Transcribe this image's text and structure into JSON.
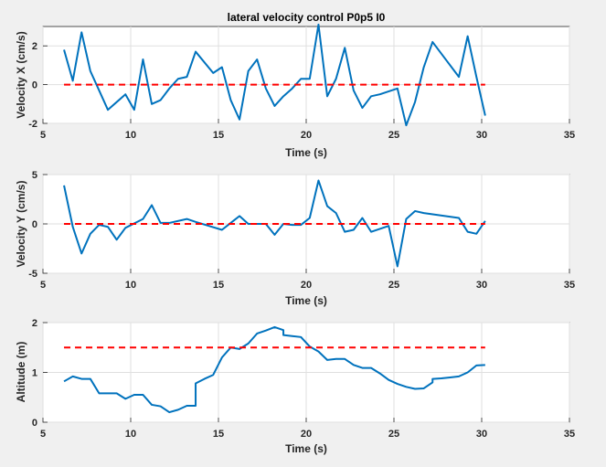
{
  "chart_data": [
    {
      "type": "line",
      "title": "lateral velocity control P0p5 I0",
      "xlabel": "Time (s)",
      "ylabel": "Velocity X (cm/s)",
      "xlim": [
        5,
        35
      ],
      "ylim": [
        -2,
        3
      ],
      "xticks": [
        "5",
        "10",
        "15",
        "20",
        "25",
        "30",
        "35"
      ],
      "yticks": [
        "-2",
        "0",
        "2"
      ],
      "ytick_values": [
        -2,
        0,
        2
      ],
      "grid": true,
      "series": [
        {
          "color": "#0072BD",
          "style": "solid",
          "x": [
            6.2,
            6.7,
            7.2,
            7.7,
            8.2,
            8.7,
            9.7,
            10.2,
            10.7,
            11.2,
            11.7,
            12.2,
            12.7,
            13.2,
            13.7,
            14.7,
            15.2,
            15.7,
            16.2,
            16.7,
            17.2,
            17.7,
            18.2,
            18.7,
            19.2,
            19.7,
            20.2,
            20.7,
            21.2,
            21.7,
            22.2,
            22.7,
            23.2,
            23.7,
            24.2,
            25.2,
            25.7,
            26.2,
            26.7,
            27.2,
            27.7,
            28.7,
            29.2,
            29.7,
            30.2
          ],
          "y": [
            1.8,
            0.2,
            2.7,
            0.7,
            -0.3,
            -1.3,
            -0.5,
            -1.3,
            1.3,
            -1.0,
            -0.8,
            -0.2,
            0.3,
            0.4,
            1.7,
            0.6,
            0.9,
            -0.8,
            -1.8,
            0.7,
            1.3,
            -0.2,
            -1.1,
            -0.6,
            -0.2,
            0.3,
            0.3,
            3.1,
            -0.6,
            0.3,
            1.9,
            -0.3,
            -1.2,
            -0.6,
            -0.5,
            -0.2,
            -2.1,
            -0.9,
            0.9,
            2.2,
            1.6,
            0.4,
            2.5,
            0.4,
            -1.6
          ]
        },
        {
          "color": "#FF0000",
          "style": "dashed",
          "x": [
            6.2,
            30.2
          ],
          "y": [
            0,
            0
          ]
        }
      ]
    },
    {
      "type": "line",
      "title": "",
      "xlabel": "Time (s)",
      "ylabel": "Velocity Y (cm/s)",
      "xlim": [
        5,
        35
      ],
      "ylim": [
        -5,
        5
      ],
      "xticks": [
        "5",
        "10",
        "15",
        "20",
        "25",
        "30",
        "35"
      ],
      "yticks": [
        "-5",
        "0",
        "5"
      ],
      "ytick_values": [
        -5,
        0,
        5
      ],
      "grid": true,
      "series": [
        {
          "color": "#0072BD",
          "style": "solid",
          "x": [
            6.2,
            6.7,
            7.2,
            7.7,
            8.2,
            8.7,
            9.2,
            9.7,
            10.7,
            11.2,
            11.7,
            12.2,
            13.2,
            13.7,
            15.2,
            15.7,
            16.2,
            16.7,
            17.2,
            17.7,
            18.2,
            18.7,
            19.2,
            19.7,
            20.2,
            20.7,
            21.2,
            21.7,
            22.2,
            22.7,
            23.2,
            23.7,
            24.2,
            24.7,
            25.2,
            25.7,
            26.2,
            26.7,
            28.7,
            29.2,
            29.7,
            30.2
          ],
          "y": [
            3.9,
            -0.3,
            -3.0,
            -1.0,
            -0.1,
            -0.3,
            -1.6,
            -0.4,
            0.5,
            1.9,
            0.1,
            0.1,
            0.5,
            0.2,
            -0.6,
            0.1,
            0.8,
            0.0,
            0.0,
            0.0,
            -1.1,
            0.0,
            -0.1,
            -0.1,
            0.6,
            4.4,
            1.8,
            1.1,
            -0.8,
            -0.6,
            0.6,
            -0.8,
            -0.5,
            -0.2,
            -4.3,
            0.5,
            1.3,
            1.1,
            0.6,
            -0.8,
            -1.0,
            0.3
          ]
        },
        {
          "color": "#FF0000",
          "style": "dashed",
          "x": [
            6.2,
            30.2
          ],
          "y": [
            0,
            0
          ]
        }
      ]
    },
    {
      "type": "line",
      "title": "",
      "xlabel": "Time (s)",
      "ylabel": "Altitude (m)",
      "xlim": [
        5,
        35
      ],
      "ylim": [
        0,
        2
      ],
      "xticks": [
        "5",
        "10",
        "15",
        "20",
        "25",
        "30",
        "35"
      ],
      "yticks": [
        "0",
        "1",
        "2"
      ],
      "ytick_values": [
        0,
        1,
        2
      ],
      "grid": true,
      "series": [
        {
          "color": "#0072BD",
          "style": "solid",
          "x": [
            6.2,
            6.7,
            7.2,
            7.7,
            8.2,
            8.7,
            9.2,
            9.7,
            10.2,
            10.7,
            11.2,
            11.7,
            12.2,
            12.7,
            13.2,
            13.7,
            13.7,
            14.2,
            14.7,
            15.2,
            15.7,
            16.2,
            16.7,
            17.2,
            17.7,
            18.2,
            18.7,
            18.7,
            19.2,
            19.7,
            20.2,
            20.7,
            21.2,
            21.7,
            22.2,
            22.7,
            23.2,
            23.7,
            24.2,
            24.7,
            25.2,
            25.7,
            26.2,
            26.7,
            27.2,
            27.2,
            27.7,
            28.2,
            28.7,
            29.2,
            29.7,
            30.2
          ],
          "y": [
            0.82,
            0.92,
            0.87,
            0.87,
            0.58,
            0.58,
            0.58,
            0.47,
            0.55,
            0.55,
            0.35,
            0.32,
            0.2,
            0.25,
            0.33,
            0.33,
            0.78,
            0.87,
            0.95,
            1.3,
            1.5,
            1.47,
            1.58,
            1.78,
            1.84,
            1.91,
            1.85,
            1.75,
            1.73,
            1.71,
            1.52,
            1.42,
            1.25,
            1.27,
            1.27,
            1.15,
            1.09,
            1.09,
            0.98,
            0.85,
            0.77,
            0.71,
            0.67,
            0.68,
            0.8,
            0.87,
            0.88,
            0.9,
            0.92,
            1.0,
            1.14,
            1.15
          ]
        },
        {
          "color": "#FF0000",
          "style": "dashed",
          "x": [
            6.2,
            30.2
          ],
          "y": [
            1.5,
            1.5
          ]
        }
      ]
    }
  ]
}
